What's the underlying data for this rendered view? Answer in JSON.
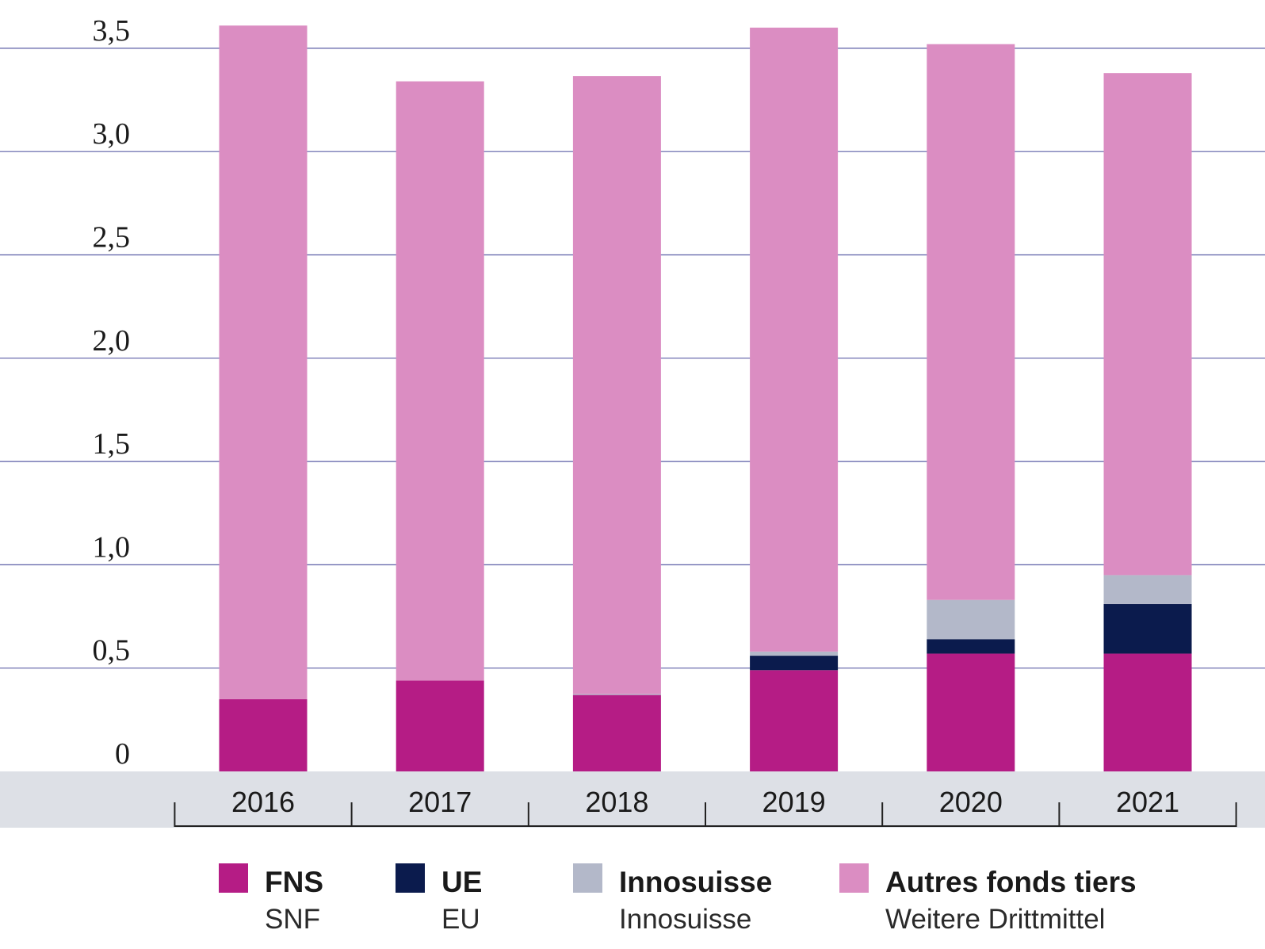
{
  "chart_data": {
    "type": "bar",
    "stacked": true,
    "categories": [
      "2016",
      "2017",
      "2018",
      "2019",
      "2020",
      "2021"
    ],
    "ylim": [
      0,
      3.5
    ],
    "yticks": [
      0,
      0.5,
      1.0,
      1.5,
      2.0,
      2.5,
      3.0,
      3.5
    ],
    "ytick_labels": [
      "0",
      "0,5",
      "1,0",
      "1,5",
      "2,0",
      "2,5",
      "3,0",
      "3,5"
    ],
    "grid": true,
    "legend_position": "bottom",
    "series": [
      {
        "name": "FNS",
        "subname": "SNF",
        "color": "#b51c85",
        "values": [
          0.35,
          0.44,
          0.37,
          0.49,
          0.57,
          0.57
        ]
      },
      {
        "name": "UE",
        "subname": "EU",
        "color": "#0b1b4d",
        "values": [
          0.0,
          0.0,
          0.0,
          0.07,
          0.07,
          0.24
        ]
      },
      {
        "name": "Innosuisse",
        "subname": "Innosuisse",
        "color": "#b3b8c9",
        "values": [
          0.0,
          0.0,
          0.005,
          0.02,
          0.19,
          0.14
        ]
      },
      {
        "name": "Autres fonds tiers",
        "subname": "Weitere Drittmittel",
        "color": "#db8dc2",
        "values": [
          3.26,
          2.9,
          2.99,
          3.02,
          2.69,
          2.43
        ]
      }
    ]
  }
}
